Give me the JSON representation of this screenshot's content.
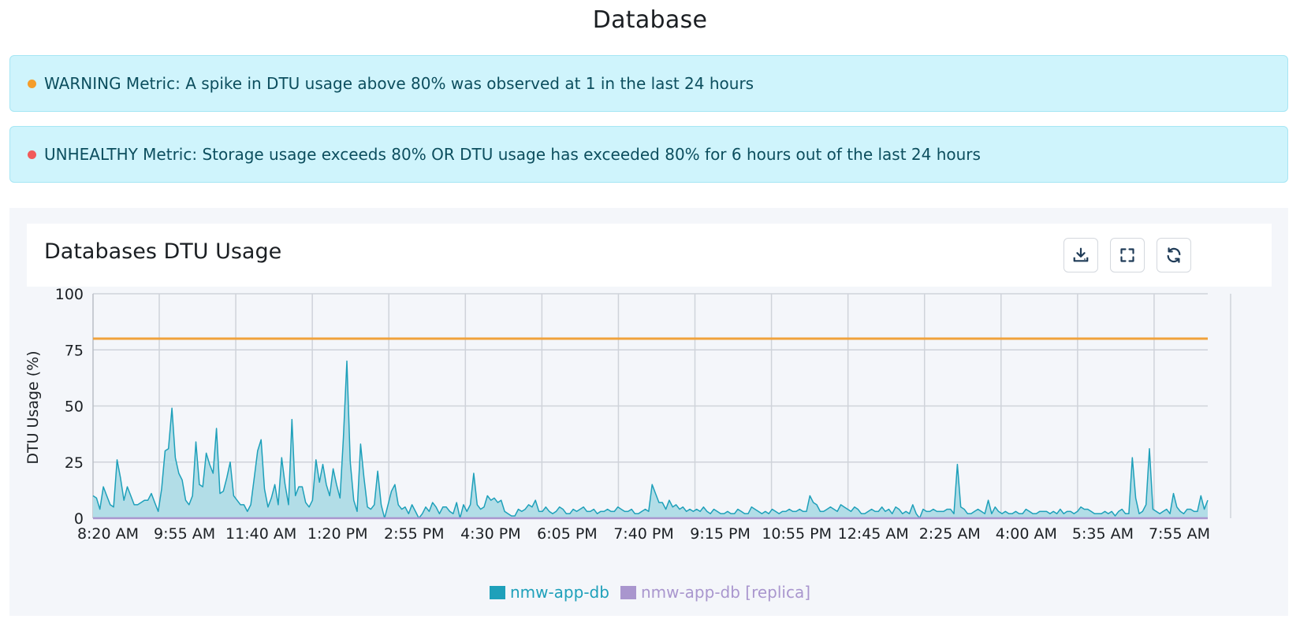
{
  "page": {
    "title": "Database"
  },
  "alerts": [
    {
      "level_color": "#f59d2a",
      "text": "WARNING Metric: A spike in DTU usage above 80% was observed at 1 in the last 24 hours"
    },
    {
      "level_color": "#f15a5a",
      "text": "UNHEALTHY Metric: Storage usage exceeds 80% OR DTU usage has exceeded 80% for 6 hours out of the last 24 hours"
    }
  ],
  "card": {
    "title": "Databases DTU Usage",
    "tools": [
      {
        "name": "download-button",
        "icon": "download-icon"
      },
      {
        "name": "fullscreen-button",
        "icon": "expand-icon"
      },
      {
        "name": "refresh-button",
        "icon": "refresh-icon"
      }
    ]
  },
  "chart_data": {
    "type": "area",
    "title": "",
    "xlabel": "",
    "ylabel": "DTU Usage (%)",
    "ylim": [
      0,
      100
    ],
    "yticks": [
      0,
      25,
      50,
      75,
      100
    ],
    "xtick_labels": [
      "8:20 AM",
      "9:55 AM",
      "11:40 AM",
      "1:20 PM",
      "2:55 PM",
      "4:30 PM",
      "6:05 PM",
      "7:40 PM",
      "9:15 PM",
      "10:55 PM",
      "12:45 AM",
      "2:25 AM",
      "4:00 AM",
      "5:35 AM",
      "7:55 AM"
    ],
    "grid": true,
    "legend_position": "bottom",
    "threshold": {
      "value": 80,
      "color": "#f0a23b"
    },
    "series": [
      {
        "name": "nmw-app-db",
        "color": "#1ea0ba",
        "fill": "#b2dde7",
        "values": [
          10,
          9,
          4,
          14,
          10,
          6,
          5,
          26,
          18,
          8,
          14,
          10,
          6,
          6,
          7,
          8,
          8,
          11,
          7,
          3,
          13,
          30,
          31,
          49,
          27,
          20,
          17,
          8,
          6,
          10,
          34,
          15,
          14,
          29,
          24,
          20,
          40,
          11,
          12,
          18,
          25,
          10,
          8,
          6,
          6,
          3,
          6,
          18,
          30,
          35,
          13,
          5,
          9,
          15,
          6,
          27,
          15,
          6,
          44,
          10,
          14,
          14,
          7,
          5,
          8,
          26,
          16,
          24,
          15,
          10,
          22,
          15,
          9,
          36,
          70,
          25,
          8,
          3,
          33,
          18,
          5,
          4,
          6,
          21,
          6,
          0,
          6,
          12,
          15,
          6,
          4,
          5,
          2,
          6,
          3,
          0,
          2,
          5,
          3,
          7,
          5,
          2,
          5,
          5,
          3,
          2,
          7,
          0,
          6,
          3,
          6,
          20,
          6,
          4,
          5,
          10,
          8,
          9,
          7,
          8,
          3,
          2,
          1,
          1,
          4,
          3,
          4,
          6,
          5,
          8,
          3,
          3,
          5,
          3,
          2,
          3,
          5,
          4,
          2,
          2,
          4,
          3,
          4,
          5,
          3,
          3,
          4,
          2,
          3,
          3,
          4,
          3,
          3,
          5,
          4,
          3,
          3,
          4,
          2,
          2,
          3,
          4,
          3,
          15,
          11,
          7,
          7,
          4,
          8,
          5,
          6,
          4,
          5,
          3,
          4,
          3,
          4,
          3,
          5,
          3,
          2,
          4,
          3,
          2,
          2,
          3,
          2,
          2,
          4,
          3,
          2,
          2,
          5,
          4,
          3,
          2,
          3,
          2,
          4,
          3,
          2,
          3,
          3,
          4,
          3,
          3,
          4,
          3,
          3,
          10,
          7,
          6,
          3,
          3,
          4,
          5,
          4,
          3,
          6,
          5,
          4,
          3,
          5,
          4,
          2,
          2,
          3,
          4,
          3,
          3,
          5,
          3,
          4,
          2,
          5,
          4,
          2,
          3,
          2,
          6,
          2,
          0,
          4,
          3,
          3,
          4,
          3,
          3,
          3,
          4,
          4,
          2,
          24,
          5,
          4,
          2,
          2,
          3,
          4,
          3,
          2,
          8,
          2,
          5,
          3,
          2,
          3,
          2,
          2,
          3,
          2,
          2,
          4,
          3,
          2,
          2,
          3,
          3,
          3,
          2,
          3,
          2,
          4,
          2,
          3,
          3,
          2,
          3,
          5,
          4,
          4,
          3,
          2,
          2,
          2,
          3,
          2,
          3,
          1,
          3,
          4,
          2,
          2,
          27,
          9,
          2,
          3,
          6,
          31,
          4,
          3,
          2,
          3,
          4,
          2,
          11,
          5,
          3,
          2,
          4,
          4,
          3,
          3,
          10,
          4,
          8
        ]
      },
      {
        "name": "nmw-app-db [replica]",
        "color": "#a996ce",
        "values": [
          0,
          0
        ]
      }
    ]
  }
}
